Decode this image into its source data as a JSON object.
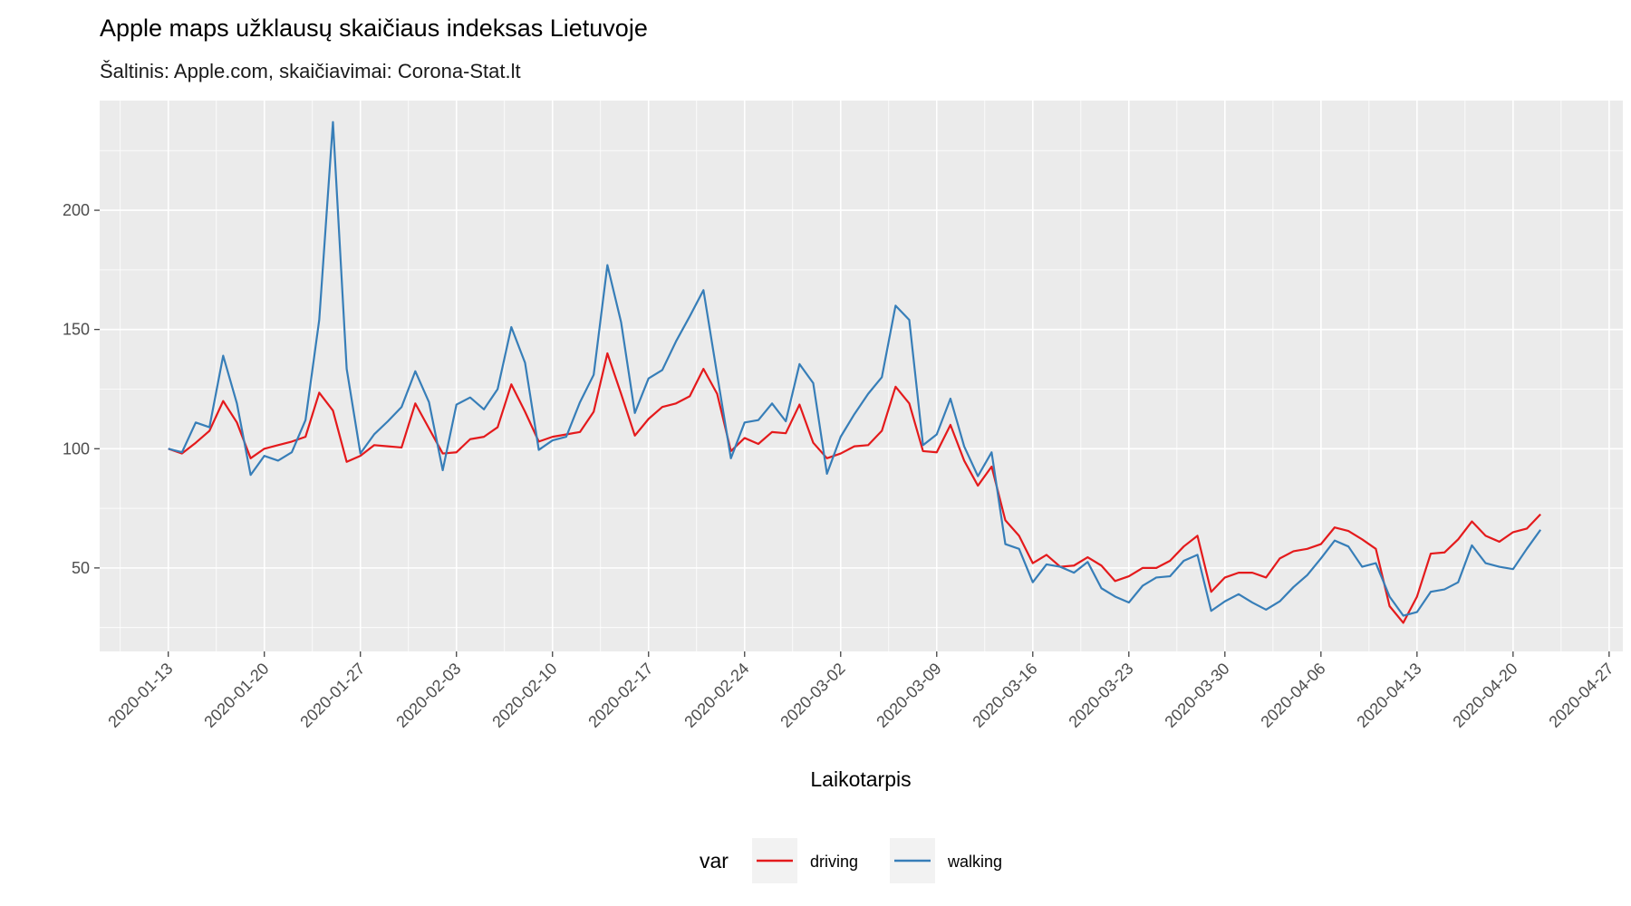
{
  "chart_data": {
    "type": "line",
    "title": "Apple maps užklausų skaičiaus indeksas Lietuvoje",
    "subtitle": "Šaltinis: Apple.com, skaičiavimai: Corona-Stat.lt",
    "xlabel": "Laikotarpis",
    "ylabel": "",
    "x_start": "2020-01-13",
    "x_ticks": [
      "2020-01-13",
      "2020-01-20",
      "2020-01-27",
      "2020-02-03",
      "2020-02-10",
      "2020-02-17",
      "2020-02-24",
      "2020-03-02",
      "2020-03-09",
      "2020-03-16",
      "2020-03-23",
      "2020-03-30",
      "2020-04-06",
      "2020-04-13",
      "2020-04-20",
      "2020-04-27"
    ],
    "xlim": [
      "2020-01-08",
      "2020-04-28"
    ],
    "y_ticks": [
      50,
      100,
      150,
      200
    ],
    "ylim": [
      15,
      246
    ],
    "grid": true,
    "legend": {
      "title": "var",
      "position": "bottom"
    },
    "series": [
      {
        "name": "driving",
        "color": "#e41a1c",
        "values": [
          100,
          98,
          102.5,
          107.5,
          120,
          111,
          96,
          100,
          101.5,
          103,
          105,
          123.5,
          116,
          94.5,
          97,
          101.5,
          101,
          100.5,
          119,
          108.5,
          98,
          98.5,
          104,
          105,
          109,
          127,
          115.5,
          103,
          105,
          106,
          107,
          115.5,
          140,
          123,
          105.5,
          112.5,
          117.5,
          119,
          122,
          133.5,
          123,
          99,
          104.5,
          102,
          107,
          106.5,
          118.5,
          102.5,
          96,
          98,
          101,
          101.5,
          107.5,
          126,
          119,
          99,
          98.5,
          110,
          95,
          84.5,
          92.5,
          70,
          63.5,
          52,
          55.5,
          50.5,
          51,
          54.5,
          51,
          44.5,
          46.5,
          50,
          50,
          53,
          59,
          63.5,
          40,
          46,
          48,
          48,
          46,
          54,
          57,
          58,
          60,
          67,
          65.5,
          62,
          58,
          34,
          27,
          38,
          56,
          56.5,
          62,
          69.5,
          63.5,
          61,
          65,
          66.5,
          72.5
        ]
      },
      {
        "name": "walking",
        "color": "#377eb8",
        "values": [
          100,
          98.5,
          111,
          109,
          139,
          119,
          89,
          97,
          95,
          98.5,
          112,
          154,
          237,
          133.5,
          98,
          106,
          111.5,
          117.5,
          132.5,
          119.5,
          91,
          118.5,
          121.5,
          116.5,
          125,
          151,
          136,
          99.5,
          103.5,
          105,
          119.5,
          131,
          177,
          153,
          115,
          129.5,
          133,
          145,
          155.5,
          166.5,
          131,
          96,
          111,
          112,
          119,
          111.5,
          135.5,
          127.5,
          89.5,
          105,
          114.5,
          123,
          130,
          160,
          154,
          101.5,
          106,
          121,
          101,
          88.5,
          98.5,
          60,
          58,
          44,
          51.5,
          50.5,
          48,
          52.5,
          41.5,
          38,
          35.5,
          42.5,
          46,
          46.5,
          53,
          55.5,
          32,
          36,
          39,
          35.5,
          32.5,
          36,
          42,
          47,
          54,
          61.5,
          59,
          50.5,
          52,
          38,
          30,
          31.5,
          40,
          41,
          44,
          59.5,
          52,
          50.5,
          49.5,
          58,
          66
        ]
      }
    ]
  }
}
